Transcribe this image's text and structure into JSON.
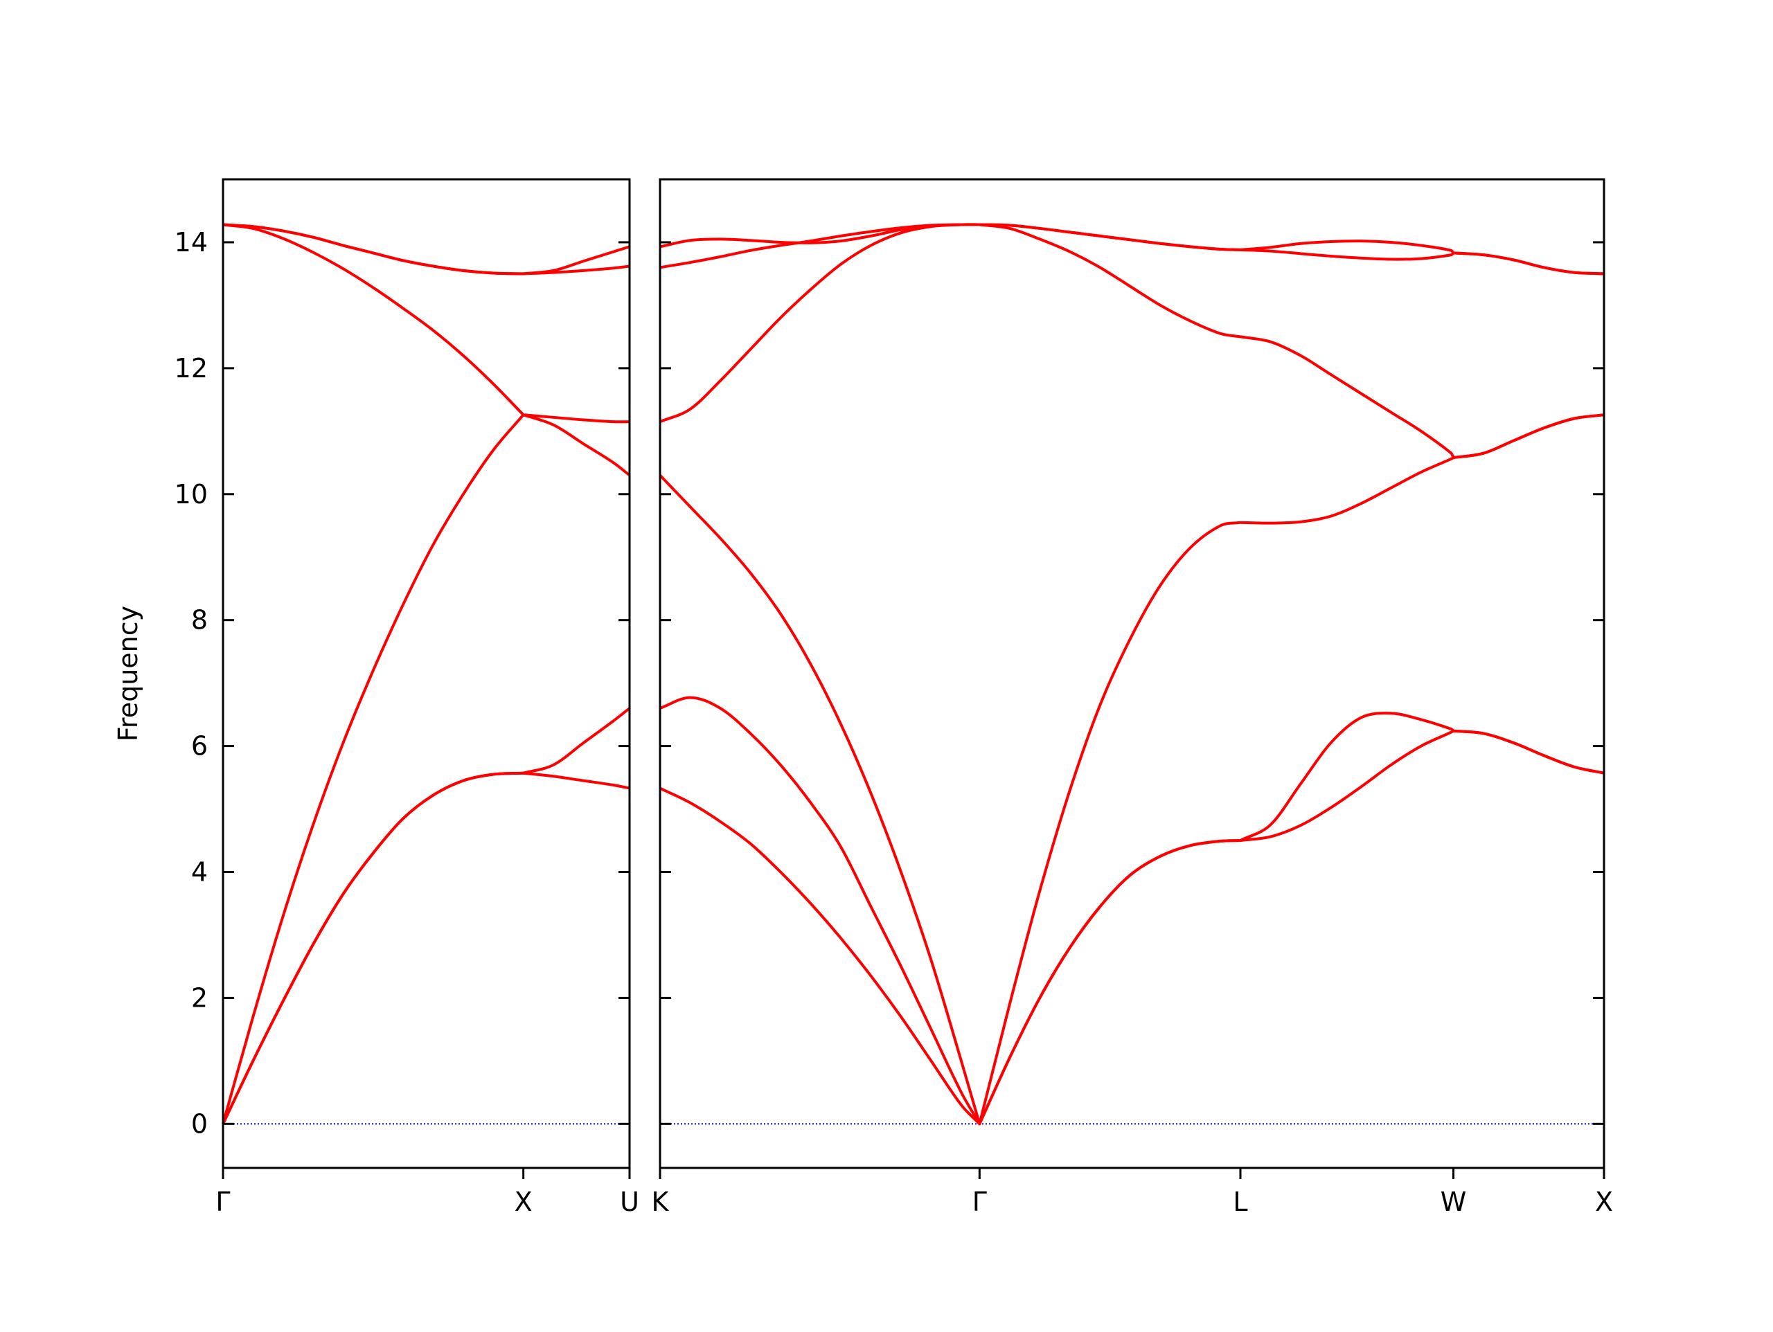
{
  "chart_data": [
    {
      "type": "line",
      "ylabel": "Frequency",
      "x": [
        0,
        0.1,
        0.2,
        0.3,
        0.4,
        0.5,
        0.6,
        0.7,
        0.8,
        0.9,
        1,
        1.1,
        1.2,
        1.3,
        1.3536
      ],
      "xlim": [
        0,
        1.3536
      ],
      "xticks": [
        {
          "value": 0,
          "label": "Γ"
        },
        {
          "value": 1,
          "label": "X"
        },
        {
          "value": 1.3536,
          "label": "U"
        }
      ],
      "ylim": [
        -0.7,
        15
      ],
      "yticks": [
        0,
        2,
        4,
        6,
        8,
        10,
        12,
        14
      ],
      "show_ytick_labels": true,
      "hline": {
        "value": 0,
        "color": "#0000cc"
      },
      "series": [
        {
          "color": "#ff0000",
          "values": [
            0,
            1.0,
            1.95,
            2.85,
            3.65,
            4.3,
            4.85,
            5.22,
            5.45,
            5.55,
            5.57,
            5.52,
            5.45,
            5.38,
            5.33
          ]
        },
        {
          "color": "#ff0000",
          "values": [
            0,
            1.0,
            1.95,
            2.85,
            3.65,
            4.3,
            4.85,
            5.22,
            5.45,
            5.55,
            5.57,
            5.7,
            6.05,
            6.4,
            6.6
          ]
        },
        {
          "color": "#ff0000",
          "values": [
            0,
            1.7,
            3.3,
            4.75,
            6.05,
            7.2,
            8.25,
            9.2,
            10.0,
            10.7,
            11.26,
            11.1,
            10.8,
            10.5,
            10.3
          ]
        },
        {
          "color": "#ff0000",
          "values": [
            14.28,
            14.22,
            14.06,
            13.84,
            13.58,
            13.28,
            12.95,
            12.6,
            12.2,
            11.75,
            11.26,
            11.22,
            11.18,
            11.15,
            11.15
          ]
        },
        {
          "color": "#ff0000",
          "values": [
            14.28,
            14.25,
            14.18,
            14.08,
            13.95,
            13.83,
            13.71,
            13.62,
            13.55,
            13.51,
            13.5,
            13.52,
            13.55,
            13.59,
            13.62
          ]
        },
        {
          "color": "#ff0000",
          "values": [
            14.28,
            14.25,
            14.18,
            14.08,
            13.95,
            13.83,
            13.71,
            13.62,
            13.55,
            13.51,
            13.5,
            13.55,
            13.7,
            13.85,
            13.93
          ]
        }
      ]
    },
    {
      "type": "line",
      "x": [
        0,
        0.1,
        0.2,
        0.3,
        0.4,
        0.5,
        0.6,
        0.7,
        0.8,
        0.9,
        1.0,
        1.0607,
        1.1607,
        1.2607,
        1.3607,
        1.4607,
        1.5607,
        1.6607,
        1.7607,
        1.8607,
        1.9267,
        2.0267,
        2.1267,
        2.2267,
        2.3267,
        2.4267,
        2.5267,
        2.6267,
        2.6338,
        2.7338,
        2.8338,
        2.9338,
        3.0338,
        3.1338
      ],
      "xlim": [
        0,
        3.1338
      ],
      "xticks": [
        {
          "value": 0,
          "label": "K"
        },
        {
          "value": 1.0607,
          "label": "Γ"
        },
        {
          "value": 1.9267,
          "label": "L"
        },
        {
          "value": 2.6338,
          "label": "W"
        },
        {
          "value": 3.1338,
          "label": "X"
        }
      ],
      "ylim": [
        -0.7,
        15
      ],
      "yticks": [
        0,
        2,
        4,
        6,
        8,
        10,
        12,
        14
      ],
      "show_ytick_labels": false,
      "hline": {
        "value": 0,
        "color": "#0000cc"
      },
      "series": [
        {
          "color": "#ff0000",
          "values": [
            5.33,
            5.1,
            4.8,
            4.45,
            4.0,
            3.5,
            2.95,
            2.35,
            1.7,
            1.0,
            0.3,
            0,
            1.05,
            2.0,
            2.8,
            3.45,
            3.95,
            4.25,
            4.42,
            4.49,
            4.5,
            4.56,
            4.74,
            5.02,
            5.35,
            5.7,
            6.0,
            6.22,
            6.24,
            6.2,
            6.05,
            5.85,
            5.67,
            5.57
          ]
        },
        {
          "color": "#ff0000",
          "values": [
            6.6,
            6.77,
            6.6,
            6.2,
            5.7,
            5.1,
            4.4,
            3.45,
            2.5,
            1.5,
            0.5,
            0,
            1.05,
            2.0,
            2.8,
            3.45,
            3.95,
            4.25,
            4.42,
            4.49,
            4.5,
            4.75,
            5.4,
            6.05,
            6.45,
            6.52,
            6.42,
            6.27,
            6.24,
            6.2,
            6.05,
            5.85,
            5.67,
            5.57
          ]
        },
        {
          "color": "#ff0000",
          "values": [
            10.3,
            9.8,
            9.3,
            8.75,
            8.1,
            7.3,
            6.35,
            5.25,
            4.0,
            2.6,
            1.0,
            0,
            1.9,
            3.7,
            5.3,
            6.65,
            7.7,
            8.55,
            9.15,
            9.5,
            9.55,
            9.54,
            9.56,
            9.65,
            9.85,
            10.1,
            10.35,
            10.56,
            10.58,
            10.65,
            10.85,
            11.05,
            11.2,
            11.26
          ]
        },
        {
          "color": "#ff0000",
          "values": [
            11.15,
            11.35,
            11.8,
            12.3,
            12.8,
            13.25,
            13.65,
            13.95,
            14.15,
            14.25,
            14.28,
            14.28,
            14.22,
            14.05,
            13.85,
            13.6,
            13.3,
            13.0,
            12.75,
            12.55,
            12.5,
            12.42,
            12.2,
            11.9,
            11.6,
            11.3,
            11.0,
            10.65,
            10.58,
            10.65,
            10.85,
            11.05,
            11.2,
            11.26
          ]
        },
        {
          "color": "#ff0000",
          "values": [
            13.6,
            13.68,
            13.77,
            13.87,
            13.95,
            14.02,
            14.1,
            14.17,
            14.23,
            14.27,
            14.28,
            14.28,
            14.27,
            14.22,
            14.16,
            14.1,
            14.04,
            13.98,
            13.93,
            13.89,
            13.88,
            13.86,
            13.82,
            13.78,
            13.75,
            13.73,
            13.74,
            13.8,
            13.83,
            13.8,
            13.72,
            13.6,
            13.52,
            13.5
          ]
        },
        {
          "color": "#ff0000",
          "values": [
            13.93,
            14.03,
            14.05,
            14.03,
            14.0,
            13.99,
            14.02,
            14.1,
            14.2,
            14.26,
            14.28,
            14.28,
            14.27,
            14.22,
            14.16,
            14.1,
            14.04,
            13.98,
            13.93,
            13.89,
            13.88,
            13.92,
            13.98,
            14.01,
            14.02,
            14.0,
            13.95,
            13.87,
            13.83,
            13.8,
            13.72,
            13.6,
            13.52,
            13.5
          ]
        }
      ]
    }
  ]
}
